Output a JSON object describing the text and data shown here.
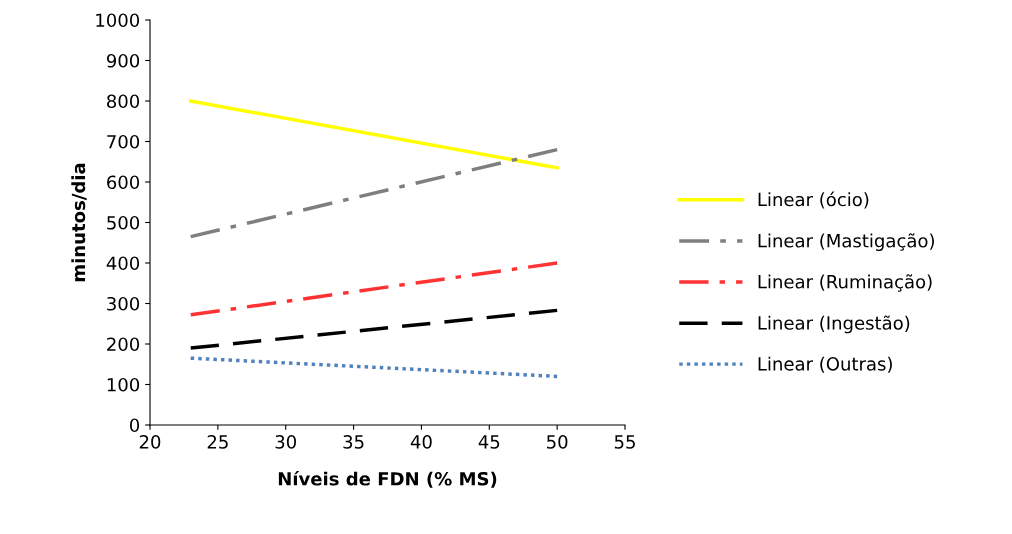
{
  "chart_data": {
    "type": "line",
    "xlabel": "Níveis de FDN (% MS)",
    "ylabel": "minutos/dia",
    "xlim": [
      20,
      55
    ],
    "xticks": [
      20,
      25,
      30,
      35,
      40,
      45,
      50,
      55
    ],
    "ylim": [
      0,
      1000
    ],
    "yticks": [
      0,
      100,
      200,
      300,
      400,
      500,
      600,
      700,
      800,
      900,
      1000
    ],
    "grid": false,
    "legend": "right",
    "marker": "none",
    "x": [
      23,
      50
    ],
    "series": [
      {
        "name": "Linear (ócio)",
        "color": "#ffff00",
        "values": [
          800,
          635
        ],
        "line_style": "solid"
      },
      {
        "name": "Linear (Mastigação)",
        "color": "#7f7f7f",
        "values": [
          465,
          680
        ],
        "line_style": "dashdot"
      },
      {
        "name": "Linear (Ruminação)",
        "color": "#ff3333",
        "values": [
          272,
          400
        ],
        "line_style": "dashdot"
      },
      {
        "name": "Linear (Ingestão)",
        "color": "#000000",
        "values": [
          190,
          283
        ],
        "line_style": "dashed"
      },
      {
        "name": "Linear (Outras)",
        "color": "#4f81bd",
        "values": [
          165,
          120
        ],
        "line_style": "dotted"
      }
    ]
  }
}
